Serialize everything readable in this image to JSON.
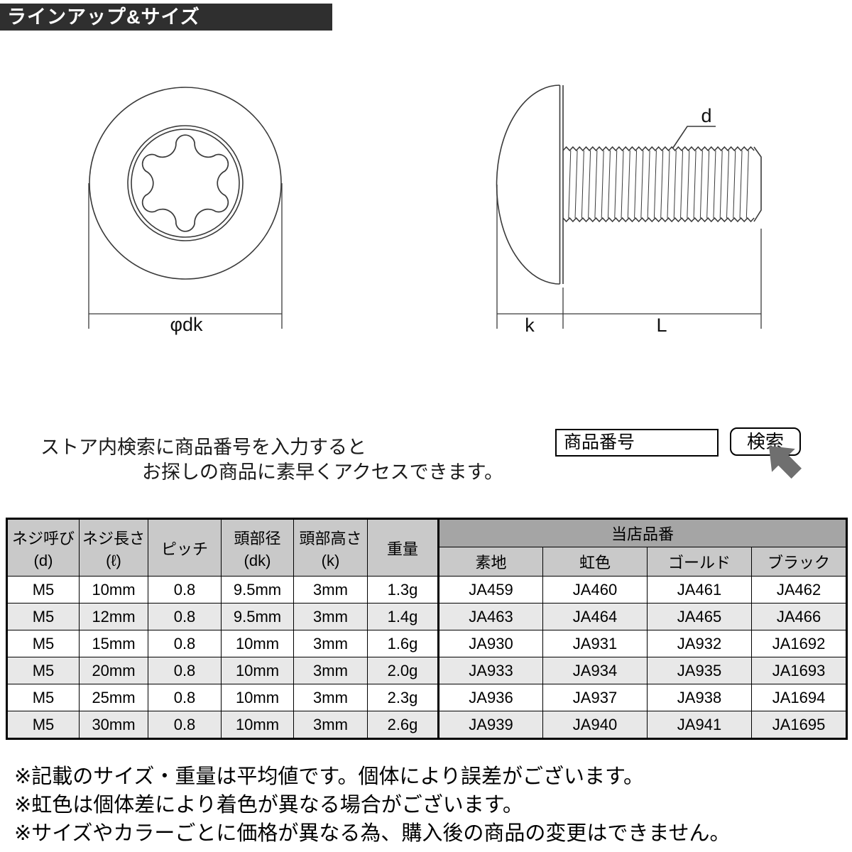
{
  "title": "ラインアップ&サイズ",
  "diagram": {
    "front_dim_label": "φdk",
    "side_dim_d": "d",
    "side_dim_k": "k",
    "side_dim_L": "L"
  },
  "search": {
    "instruction_line1": "ストア内検索に商品番号を入力すると",
    "instruction_line2": "お探しの商品に素早くアクセスできます。",
    "input_text": "商品番号",
    "button_label": "検索"
  },
  "table": {
    "group_header": "当店品番",
    "col_headers": [
      {
        "l1": "ネジ呼び",
        "l2": "(d)"
      },
      {
        "l1": "ネジ長さ",
        "l2": "(ℓ)"
      },
      {
        "l1": "ピッチ"
      },
      {
        "l1": "頭部径",
        "l2": "(dk)"
      },
      {
        "l1": "頭部高さ",
        "l2": "(k)"
      },
      {
        "l1": "重量"
      }
    ],
    "sub_headers": [
      "素地",
      "虹色",
      "ゴールド",
      "ブラック"
    ],
    "rows": [
      [
        "M5",
        "10mm",
        "0.8",
        "9.5mm",
        "3mm",
        "1.3g",
        "JA459",
        "JA460",
        "JA461",
        "JA462"
      ],
      [
        "M5",
        "12mm",
        "0.8",
        "9.5mm",
        "3mm",
        "1.4g",
        "JA463",
        "JA464",
        "JA465",
        "JA466"
      ],
      [
        "M5",
        "15mm",
        "0.8",
        "10mm",
        "3mm",
        "1.6g",
        "JA930",
        "JA931",
        "JA932",
        "JA1692"
      ],
      [
        "M5",
        "20mm",
        "0.8",
        "10mm",
        "3mm",
        "2.0g",
        "JA933",
        "JA934",
        "JA935",
        "JA1693"
      ],
      [
        "M5",
        "25mm",
        "0.8",
        "10mm",
        "3mm",
        "2.3g",
        "JA936",
        "JA937",
        "JA938",
        "JA1694"
      ],
      [
        "M5",
        "30mm",
        "0.8",
        "10mm",
        "3mm",
        "2.6g",
        "JA939",
        "JA940",
        "JA941",
        "JA1695"
      ]
    ]
  },
  "notes": [
    "※記載のサイズ・重量は平均値です。個体により誤差がございます。",
    "※虹色は個体差により着色が異なる場合がございます。",
    "※サイズやカラーごとに価格が異なる為、購入後の商品の変更はできません。"
  ],
  "colors": {
    "title_bar_bg": "#2f2f2f",
    "group_header_bg": "#a5a5a5",
    "header_bg": "#c9c9c9",
    "alt_row_bg": "#e8e8e8",
    "cursor_arrow": "#6f6f6f",
    "drawing_stroke": "#3a3a3a"
  }
}
